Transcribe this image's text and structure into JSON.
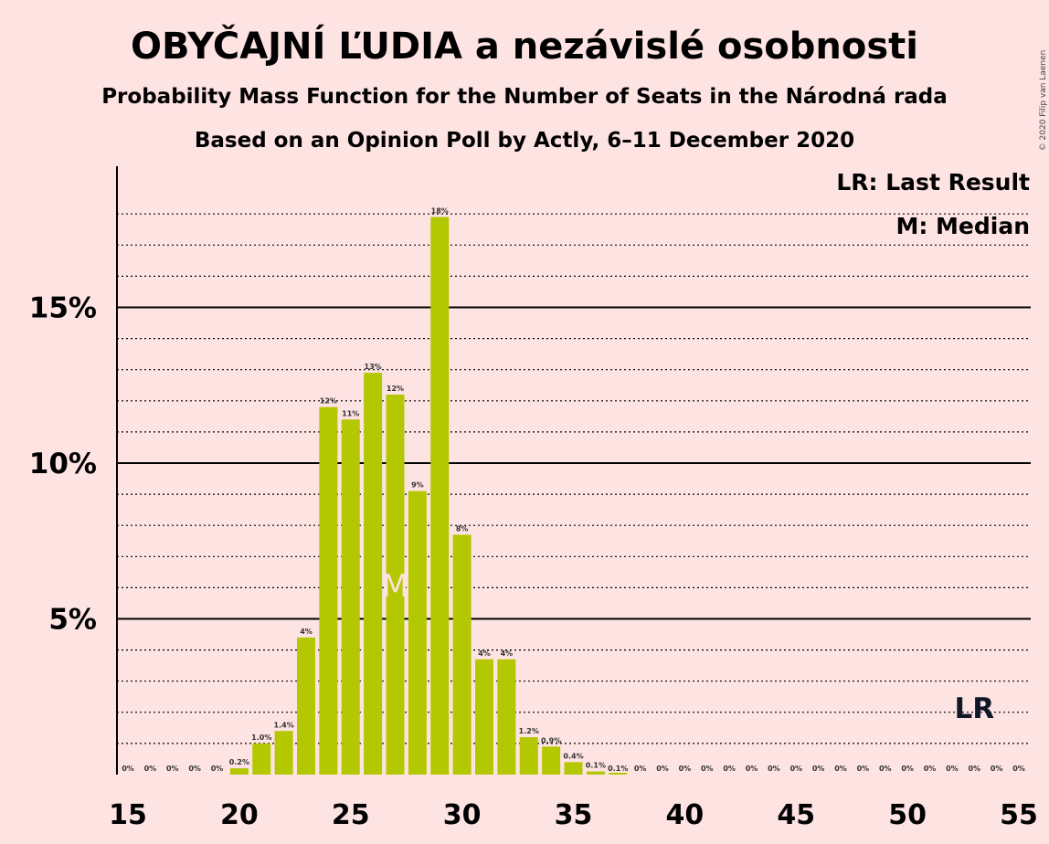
{
  "chart_data": {
    "type": "bar",
    "title": "OBYČAJNÍ ĽUDIA a nezávislé osobnosti",
    "subtitle": "Probability Mass Function for the Number of Seats in the Národná rada",
    "subtitle2": "Based on an Opinion Poll by Actly, 6–11 December 2020",
    "copyright": "© 2020 Filip van Laenen",
    "bar_color": "#B3C800",
    "x": [
      15,
      16,
      17,
      18,
      19,
      20,
      21,
      22,
      23,
      24,
      25,
      26,
      27,
      28,
      29,
      30,
      31,
      32,
      33,
      34,
      35,
      36,
      37,
      38,
      39,
      40,
      41,
      42,
      43,
      44,
      45,
      46,
      47,
      48,
      49,
      50,
      51,
      52,
      53,
      54,
      55
    ],
    "values": [
      0,
      0,
      0,
      0,
      0,
      0.2,
      1.0,
      1.4,
      4.4,
      11.8,
      11.4,
      12.9,
      12.2,
      9.1,
      17.9,
      7.7,
      3.7,
      3.7,
      1.2,
      0.9,
      0.4,
      0.1,
      0.05,
      0,
      0,
      0,
      0,
      0,
      0,
      0,
      0,
      0,
      0,
      0,
      0,
      0,
      0,
      0,
      0,
      0,
      0
    ],
    "labels": [
      "0%",
      "0%",
      "0%",
      "0%",
      "0%",
      "0.2%",
      "1.0%",
      "1.4%",
      "4%",
      "12%",
      "11%",
      "13%",
      "12%",
      "9%",
      "18%",
      "8%",
      "4%",
      "4%",
      "1.2%",
      "0.9%",
      "0.4%",
      "0.1%",
      "0.1%",
      "0%",
      "0%",
      "0%",
      "0%",
      "0%",
      "0%",
      "0%",
      "0%",
      "0%",
      "0%",
      "0%",
      "0%",
      "0%",
      "0%",
      "0%",
      "0%",
      "0%",
      "0%"
    ],
    "xticks": [
      "15",
      "20",
      "25",
      "30",
      "35",
      "40",
      "45",
      "50",
      "55"
    ],
    "yticks": [
      "5%",
      "10%",
      "15%"
    ],
    "ylim": [
      0,
      19.5
    ],
    "grid": true,
    "median_seat": 27,
    "median_marker": "M",
    "last_result_seat": 53,
    "last_result_marker": "LR",
    "legend": [
      "LR: Last Result",
      "M: Median"
    ],
    "legend_position": "top-right"
  }
}
